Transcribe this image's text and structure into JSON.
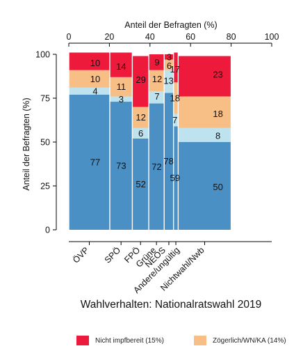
{
  "chart_data": {
    "type": "mosaic",
    "title": "Wahlverhalten: Nationalratswahl 2019",
    "xlabel": "Anteil der Befragten (%)",
    "ylabel": "Anteil der Befragten (%)",
    "xlim": [
      0,
      100
    ],
    "ylim": [
      0,
      100
    ],
    "x_ticks": [
      0,
      20,
      40,
      60,
      80,
      100
    ],
    "y_ticks": [
      0,
      25,
      50,
      75,
      100
    ],
    "x_axis_position": "top",
    "grid": false,
    "legend_position": "bottom",
    "categories": [
      "ÖVP",
      "SPÖ",
      "FPÖ",
      "Grüne",
      "NEOS",
      "Andere/ungültig",
      "Nichtwahl/Nwb"
    ],
    "column_widths_pct": [
      20.2,
      11.1,
      8.1,
      7.6,
      4.6,
      2.3,
      26.1
    ],
    "series": [
      {
        "name": "",
        "key": "bereit",
        "color": "#4a90c5",
        "values": [
          77,
          73,
          52,
          72,
          78,
          59,
          50
        ]
      },
      {
        "name": "",
        "key": "light",
        "color": "#bee3ee",
        "values": [
          4,
          3,
          6,
          7,
          13,
          7,
          8
        ]
      },
      {
        "name": "Zögerlich/WN/KA (14%)",
        "key": "zoegerlich",
        "color": "#f7bf86",
        "values": [
          10,
          11,
          12,
          12,
          6,
          18,
          18
        ]
      },
      {
        "name": "Nicht impfbereit (15%)",
        "key": "nicht",
        "color": "#ee1a3c",
        "values": [
          10,
          14,
          29,
          9,
          3,
          17,
          23
        ]
      }
    ],
    "data_labels": [
      [
        "77",
        "4",
        "10",
        "10"
      ],
      [
        "73",
        "3",
        "11",
        "14"
      ],
      [
        "52",
        "6",
        "12",
        "29"
      ],
      [
        "72",
        "7",
        "12",
        "9"
      ],
      [
        "78",
        "13",
        "6",
        "3"
      ],
      [
        "59",
        "7",
        "18",
        "17"
      ],
      [
        "50",
        "8",
        "18",
        "23"
      ]
    ]
  },
  "legend": [
    {
      "label": "Nicht impfbereit (15%)",
      "color": "#ee1a3c"
    },
    {
      "label": "Zögerlich/WN/KA (14%)",
      "color": "#f7bf86"
    }
  ]
}
